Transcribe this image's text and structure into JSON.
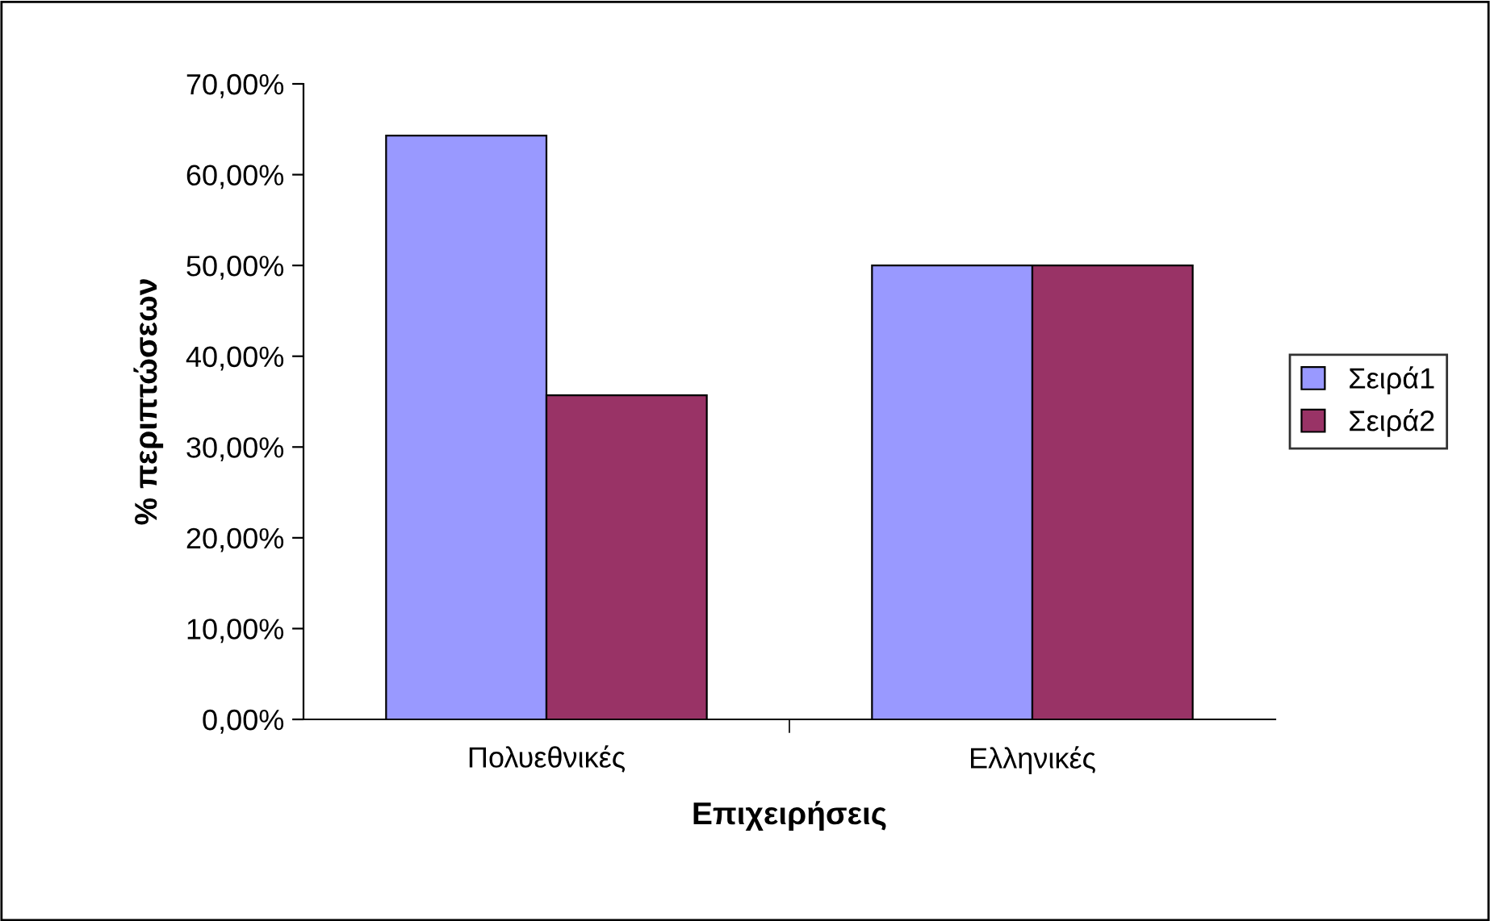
{
  "chart_data": {
    "type": "bar",
    "xlabel": "Επιχειρήσεις",
    "ylabel": "% περιπτώσεων",
    "categories": [
      "Πολυεθνικές",
      "Ελληνικές"
    ],
    "series": [
      {
        "name": "Σειρά1",
        "color": "#9999ff",
        "values": [
          64.3,
          50.0
        ]
      },
      {
        "name": "Σειρά2",
        "color": "#993366",
        "values": [
          35.7,
          50.0
        ]
      }
    ],
    "ylim": [
      0,
      70
    ],
    "yticks": [
      {
        "value": 0,
        "label": "0,00%"
      },
      {
        "value": 10,
        "label": "10,00%"
      },
      {
        "value": 20,
        "label": "20,00%"
      },
      {
        "value": 30,
        "label": "30,00%"
      },
      {
        "value": 40,
        "label": "40,00%"
      },
      {
        "value": 50,
        "label": "50,00%"
      },
      {
        "value": 60,
        "label": "60,00%"
      },
      {
        "value": 70,
        "label": "70,00%"
      }
    ],
    "grid": false,
    "legend": "right"
  }
}
